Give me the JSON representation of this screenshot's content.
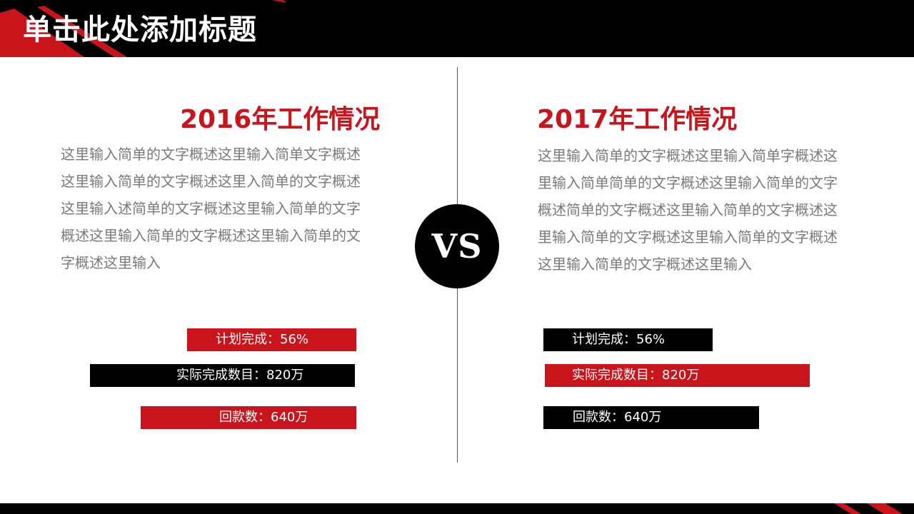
{
  "slide": {
    "title": "单击此处添加标题",
    "vs_label": "VS"
  },
  "colors": {
    "accent": "#c8141a",
    "dark": "#000000",
    "body_text": "#7a7a7a"
  },
  "left": {
    "title": "2016年工作情况",
    "body": "这里输入简单的文字概述这里输入简单文字概述这里输入简单的文字概述这里入简单的文字概述这里输入述简单的文字概述这里输入简单的文字概述这里输入简单的文字概述这里输入简单的文字概述这里输入",
    "stats": [
      {
        "label": "计划完成：56%"
      },
      {
        "label": "实际完成数目：820万"
      },
      {
        "label": "回款数：640万"
      }
    ]
  },
  "right": {
    "title": "2017年工作情况",
    "body": "这里输入简单的文字概述这里输入简单字概述这里输入简单简单的文字概述这里输入简单的文字概述简单的文字概述这里输入简单的文字概述这里输入简单的文字概述这里输入简单的文字概述这里输入简单的文字概述这里输入",
    "stats": [
      {
        "label": "计划完成：56%"
      },
      {
        "label": "实际完成数目：820万"
      },
      {
        "label": "回款数：640万"
      }
    ]
  }
}
